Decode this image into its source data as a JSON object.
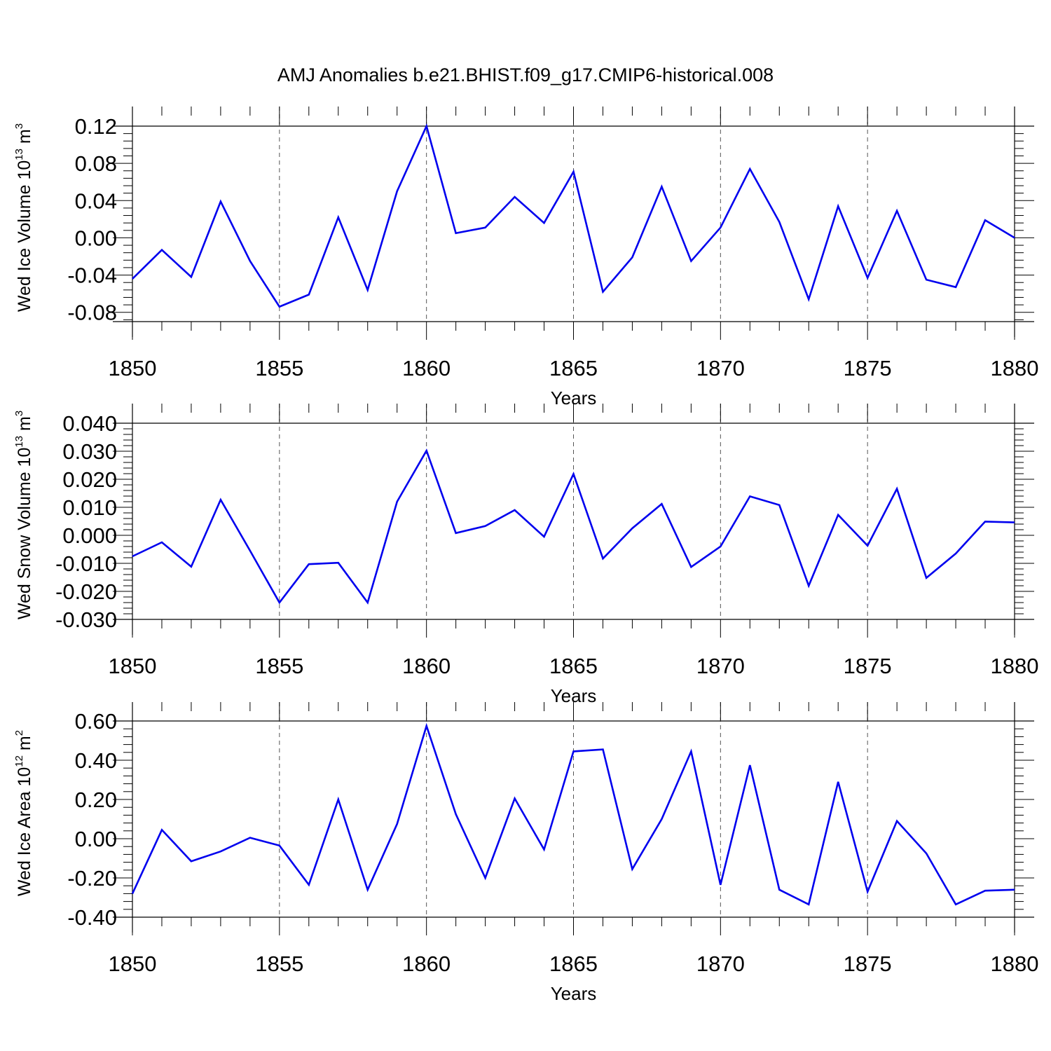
{
  "title": "AMJ Anomalies b.e21.BHIST.f09_g17.CMIP6-historical.008",
  "colors": {
    "line": "#0000ee",
    "axis": "#000000",
    "grid": "#555555"
  },
  "chart_data": [
    {
      "type": "line",
      "ylabel": {
        "text": "Wed Ice Volume 10",
        "exp": "13",
        "unit": " m",
        "unit_exp": "3"
      },
      "xlabel": "Years",
      "xlim": [
        1850,
        1880
      ],
      "ylim": [
        -0.09,
        0.125
      ],
      "xticks": [
        1850,
        1855,
        1860,
        1865,
        1870,
        1875,
        1880
      ],
      "yticks": [
        -0.08,
        -0.04,
        0.0,
        0.04,
        0.08,
        0.12
      ],
      "ytick_labels": [
        "-0.08",
        "-0.04",
        "0.00",
        "0.04",
        "0.08",
        "0.12"
      ],
      "grid_x": true,
      "x": [
        1850,
        1851,
        1852,
        1853,
        1854,
        1855,
        1856,
        1857,
        1858,
        1859,
        1860,
        1861,
        1862,
        1863,
        1864,
        1865,
        1866,
        1867,
        1868,
        1869,
        1870,
        1871,
        1872,
        1873,
        1874,
        1875,
        1876,
        1877,
        1878,
        1879,
        1880
      ],
      "series": [
        {
          "values": [
            -0.044,
            -0.013,
            -0.042,
            0.039,
            -0.025,
            -0.074,
            -0.061,
            0.022,
            -0.056,
            0.05,
            0.12,
            0.005,
            0.011,
            0.044,
            0.016,
            0.071,
            -0.058,
            -0.021,
            0.055,
            -0.025,
            0.011,
            0.074,
            0.017,
            -0.066,
            0.034,
            -0.043,
            0.029,
            -0.045,
            -0.053,
            0.019,
            0.0
          ]
        }
      ]
    },
    {
      "type": "line",
      "ylabel": {
        "text": "Wed Snow Volume 10",
        "exp": "13",
        "unit": " m",
        "unit_exp": "3"
      },
      "xlabel": "Years",
      "xlim": [
        1850,
        1880
      ],
      "ylim": [
        -0.03,
        0.04
      ],
      "xticks": [
        1850,
        1855,
        1860,
        1865,
        1870,
        1875,
        1880
      ],
      "yticks": [
        -0.03,
        -0.02,
        -0.01,
        0.0,
        0.01,
        0.02,
        0.03,
        0.04
      ],
      "ytick_labels": [
        "-0.030",
        "-0.020",
        "-0.010",
        "0.000",
        "0.010",
        "0.020",
        "0.030",
        "0.040"
      ],
      "grid_x": true,
      "x": [
        1850,
        1851,
        1852,
        1853,
        1854,
        1855,
        1856,
        1857,
        1858,
        1859,
        1860,
        1861,
        1862,
        1863,
        1864,
        1865,
        1866,
        1867,
        1868,
        1869,
        1870,
        1871,
        1872,
        1873,
        1874,
        1875,
        1876,
        1877,
        1878,
        1879,
        1880
      ],
      "series": [
        {
          "values": [
            -0.0075,
            -0.0025,
            -0.0112,
            0.0127,
            -0.0055,
            -0.024,
            -0.0103,
            -0.0098,
            -0.024,
            0.012,
            0.0302,
            0.0008,
            0.0033,
            0.009,
            -0.0005,
            0.0219,
            -0.0083,
            0.0025,
            0.0112,
            -0.0113,
            -0.004,
            0.0139,
            0.0108,
            -0.018,
            0.0073,
            -0.0037,
            0.0166,
            -0.0152,
            -0.0065,
            0.0049,
            0.0046
          ]
        }
      ]
    },
    {
      "type": "line",
      "ylabel": {
        "text": "Wed Ice Area 10",
        "exp": "12",
        "unit": " m",
        "unit_exp": "2"
      },
      "xlabel": "Years",
      "xlim": [
        1850,
        1880
      ],
      "ylim": [
        -0.4,
        0.6
      ],
      "xticks": [
        1850,
        1855,
        1860,
        1865,
        1870,
        1875,
        1880
      ],
      "yticks": [
        -0.4,
        -0.2,
        0.0,
        0.2,
        0.4,
        0.6
      ],
      "ytick_labels": [
        "-0.40",
        "-0.20",
        "0.00",
        "0.20",
        "0.40",
        "0.60"
      ],
      "grid_x": true,
      "x": [
        1850,
        1851,
        1852,
        1853,
        1854,
        1855,
        1856,
        1857,
        1858,
        1859,
        1860,
        1861,
        1862,
        1863,
        1864,
        1865,
        1866,
        1867,
        1868,
        1869,
        1870,
        1871,
        1872,
        1873,
        1874,
        1875,
        1876,
        1877,
        1878,
        1879,
        1880
      ],
      "series": [
        {
          "values": [
            -0.28,
            0.045,
            -0.115,
            -0.065,
            0.005,
            -0.035,
            -0.235,
            0.2,
            -0.26,
            0.075,
            0.575,
            0.125,
            -0.2,
            0.205,
            -0.055,
            0.445,
            0.455,
            -0.155,
            0.1,
            0.445,
            -0.235,
            0.375,
            -0.26,
            -0.335,
            0.29,
            -0.27,
            0.09,
            -0.075,
            -0.335,
            -0.265,
            -0.26
          ]
        }
      ]
    }
  ]
}
